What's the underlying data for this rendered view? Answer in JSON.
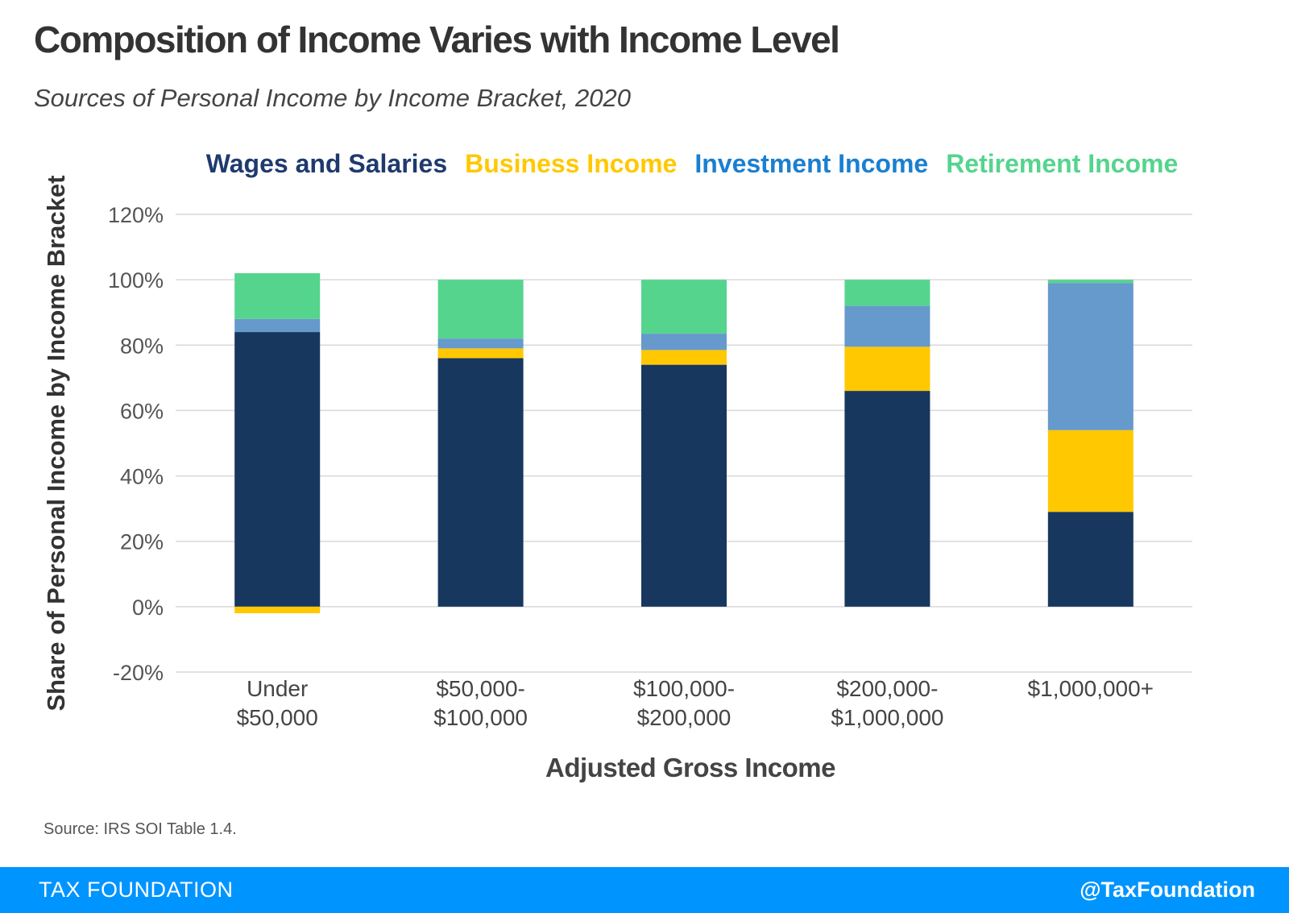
{
  "header": {
    "title": "Composition of Income Varies with Income Level",
    "subtitle": "Sources of Personal Income by Income Bracket, 2020"
  },
  "chart_data": {
    "type": "bar",
    "stacked": true,
    "categories": [
      [
        "Under",
        "$50,000"
      ],
      [
        "$50,000-",
        "$100,000"
      ],
      [
        "$100,000-",
        "$200,000"
      ],
      [
        "$200,000-",
        "$1,000,000"
      ],
      [
        "$1,000,000+"
      ]
    ],
    "series": [
      {
        "name": "Wages and Salaries",
        "color": "#17375e",
        "values": [
          84,
          76,
          74,
          66,
          29
        ]
      },
      {
        "name": "Business Income",
        "color": "#ffc800",
        "values": [
          -2,
          3,
          4.5,
          13.5,
          25
        ]
      },
      {
        "name": "Investment Income",
        "color": "#6699cc",
        "values": [
          4,
          3,
          5,
          12.5,
          45
        ]
      },
      {
        "name": "Retirement Income",
        "color": "#55d48e",
        "values": [
          14,
          18,
          16.5,
          8,
          1
        ]
      }
    ],
    "legend_colors": [
      "#1f3a6e",
      "#ffc800",
      "#1a7fd0",
      "#55d48e"
    ],
    "xlabel": "Adjusted Gross Income",
    "ylabel": "Share of Personal Income by Income Bracket",
    "ylim": [
      -20,
      120
    ],
    "yticks": [
      -20,
      0,
      20,
      40,
      60,
      80,
      100,
      120
    ],
    "ytick_labels": [
      "-20%",
      "0%",
      "20%",
      "40%",
      "60%",
      "80%",
      "100%",
      "120%"
    ],
    "grid": true,
    "legend_position": "top"
  },
  "source": "Source: IRS SOI Table 1.4.",
  "footer": {
    "brand": "TAX FOUNDATION",
    "handle": "@TaxFoundation"
  }
}
